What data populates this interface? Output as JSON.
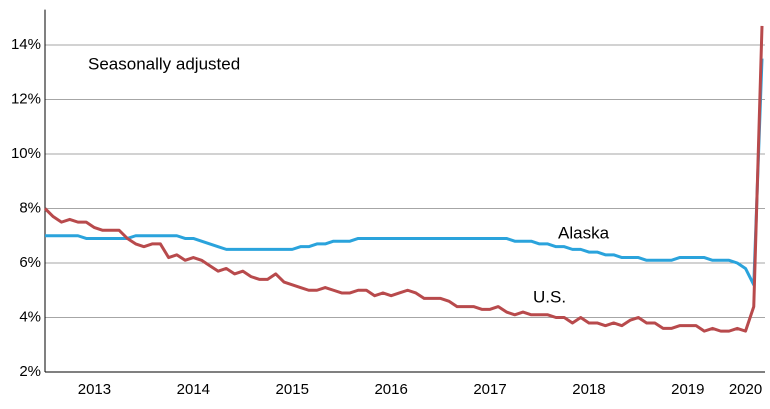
{
  "chart_data": {
    "type": "line",
    "annotations": [
      "Seasonally adjusted"
    ],
    "categories": [
      null,
      null,
      null,
      null,
      null,
      null,
      "2013",
      null,
      null,
      null,
      null,
      null,
      null,
      null,
      null,
      null,
      null,
      null,
      "2014",
      null,
      null,
      null,
      null,
      null,
      null,
      null,
      null,
      null,
      null,
      null,
      "2015",
      null,
      null,
      null,
      null,
      null,
      null,
      null,
      null,
      null,
      null,
      null,
      "2016",
      null,
      null,
      null,
      null,
      null,
      null,
      null,
      null,
      null,
      null,
      null,
      "2017",
      null,
      null,
      null,
      null,
      null,
      null,
      null,
      null,
      null,
      null,
      null,
      "2018",
      null,
      null,
      null,
      null,
      null,
      null,
      null,
      null,
      null,
      null,
      null,
      "2019",
      null,
      null,
      null,
      null,
      null,
      null,
      "2020",
      null,
      null
    ],
    "series": [
      {
        "name": "Alaska",
        "color": "#2aa3dc",
        "values": [
          7.0,
          7.0,
          7.0,
          7.0,
          7.0,
          6.9,
          6.9,
          6.9,
          6.9,
          6.9,
          6.9,
          7.0,
          7.0,
          7.0,
          7.0,
          7.0,
          7.0,
          6.9,
          6.9,
          6.8,
          6.7,
          6.6,
          6.5,
          6.5,
          6.5,
          6.5,
          6.5,
          6.5,
          6.5,
          6.5,
          6.5,
          6.6,
          6.6,
          6.7,
          6.7,
          6.8,
          6.8,
          6.8,
          6.9,
          6.9,
          6.9,
          6.9,
          6.9,
          6.9,
          6.9,
          6.9,
          6.9,
          6.9,
          6.9,
          6.9,
          6.9,
          6.9,
          6.9,
          6.9,
          6.9,
          6.9,
          6.9,
          6.8,
          6.8,
          6.8,
          6.7,
          6.7,
          6.6,
          6.6,
          6.5,
          6.5,
          6.4,
          6.4,
          6.3,
          6.3,
          6.2,
          6.2,
          6.2,
          6.1,
          6.1,
          6.1,
          6.1,
          6.2,
          6.2,
          6.2,
          6.2,
          6.1,
          6.1,
          6.1,
          6.0,
          5.8,
          5.2,
          13.5
        ]
      },
      {
        "name": "U.S.",
        "color": "#b84a4c",
        "values": [
          8.0,
          7.7,
          7.5,
          7.6,
          7.5,
          7.5,
          7.3,
          7.2,
          7.2,
          7.2,
          6.9,
          6.7,
          6.6,
          6.7,
          6.7,
          6.2,
          6.3,
          6.1,
          6.2,
          6.1,
          5.9,
          5.7,
          5.8,
          5.6,
          5.7,
          5.5,
          5.4,
          5.4,
          5.6,
          5.3,
          5.2,
          5.1,
          5.0,
          5.0,
          5.1,
          5.0,
          4.9,
          4.9,
          5.0,
          5.0,
          4.8,
          4.9,
          4.8,
          4.9,
          5.0,
          4.9,
          4.7,
          4.7,
          4.7,
          4.6,
          4.4,
          4.4,
          4.4,
          4.3,
          4.3,
          4.4,
          4.2,
          4.1,
          4.2,
          4.1,
          4.1,
          4.1,
          4.0,
          4.0,
          3.8,
          4.0,
          3.8,
          3.8,
          3.7,
          3.8,
          3.7,
          3.9,
          4.0,
          3.8,
          3.8,
          3.6,
          3.6,
          3.7,
          3.7,
          3.7,
          3.5,
          3.6,
          3.5,
          3.5,
          3.6,
          3.5,
          4.4,
          14.7
        ]
      }
    ],
    "ylim": [
      2,
      15.3
    ],
    "yticks": [
      {
        "value": 2,
        "label": "2%"
      },
      {
        "value": 4,
        "label": "4%"
      },
      {
        "value": 6,
        "label": "6%"
      },
      {
        "value": 8,
        "label": "8%"
      },
      {
        "value": 10,
        "label": "10%"
      },
      {
        "value": 12,
        "label": "12%"
      },
      {
        "value": 14,
        "label": "14%"
      }
    ],
    "grid": true
  }
}
